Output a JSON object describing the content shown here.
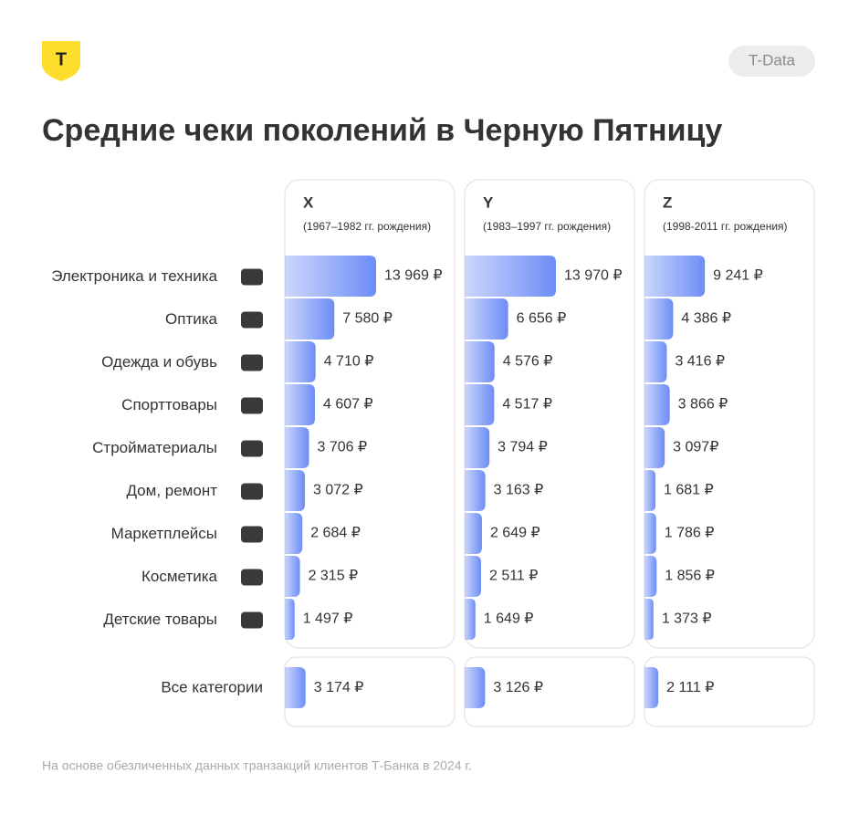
{
  "header": {
    "logo": "Т",
    "brand": "T-Data"
  },
  "chart_data": {
    "type": "bar",
    "orientation": "horizontal",
    "title": "Средние чеки поколений в Черную Пятницу",
    "categories": [
      "Электроника и техника",
      "Оптика",
      "Одежда и обувь",
      "Спорттовары",
      "Стройматериалы",
      "Дом, ремонт",
      "Маркетплейсы",
      "Косметика",
      "Детские товары"
    ],
    "total_category": "Все категории",
    "series": [
      {
        "name": "X",
        "subtitle": "(1967–1982 гг. рождения)",
        "color": "#6d8df6",
        "values": [
          13969,
          7580,
          4710,
          4607,
          3706,
          3072,
          2684,
          2315,
          1497
        ],
        "value_labels": [
          "13 969 ₽",
          "7 580 ₽",
          "4 710 ₽",
          "4 607 ₽",
          "3 706 ₽",
          "3 072 ₽",
          "2 684 ₽",
          "2 315 ₽",
          "1 497 ₽"
        ],
        "total": 3174,
        "total_label": "3 174 ₽"
      },
      {
        "name": "Y",
        "subtitle": "(1983–1997 гг. рождения)",
        "color": "#6d8df6",
        "values": [
          13970,
          6656,
          4576,
          4517,
          3794,
          3163,
          2649,
          2511,
          1649
        ],
        "value_labels": [
          "13 970 ₽",
          "6 656 ₽",
          "4 576 ₽",
          "4 517 ₽",
          "3 794 ₽",
          "3 163 ₽",
          "2 649 ₽",
          "2 511 ₽",
          "1 649 ₽"
        ],
        "total": 3126,
        "total_label": "3 126 ₽"
      },
      {
        "name": "Z",
        "subtitle": "(1998-2011 гг. рождения)",
        "color": "#6d8df6",
        "values": [
          9241,
          4386,
          3416,
          3866,
          3097,
          1681,
          1786,
          1856,
          1373
        ],
        "value_labels": [
          "9 241 ₽",
          "4 386 ₽",
          "3 416 ₽",
          "3 866 ₽",
          "3 097₽",
          "1 681 ₽",
          "1 786 ₽",
          "1 856 ₽",
          "1 373 ₽"
        ],
        "total": 2111,
        "total_label": "2 111 ₽"
      }
    ]
  },
  "footnote": "На основе обезличенных данных транзакций клиентов Т-Банка в 2024 г."
}
